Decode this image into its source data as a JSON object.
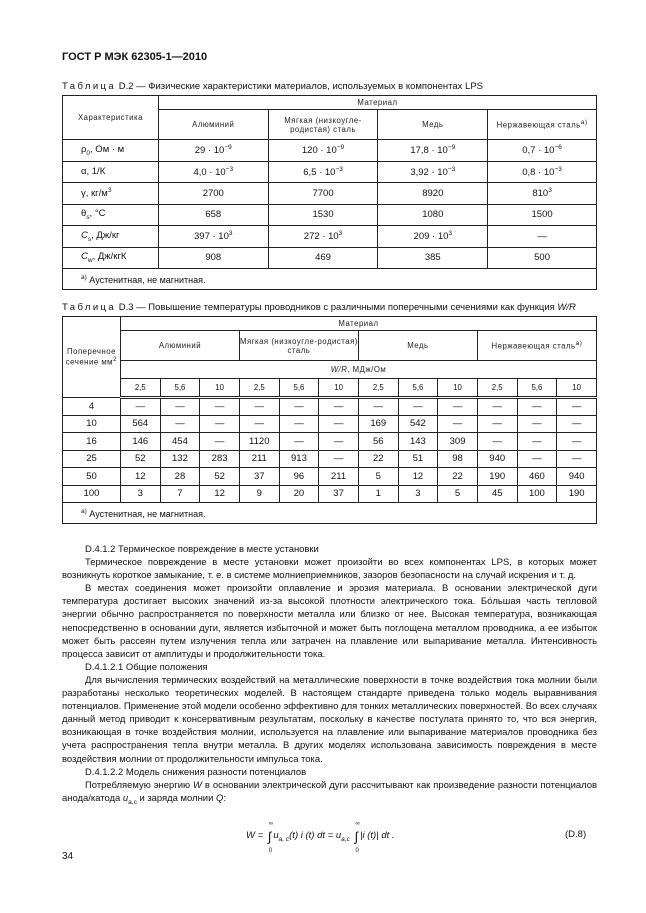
{
  "header": "ГОСТ Р МЭК 62305-1—2010",
  "table_d2": {
    "caption_prefix": "Таблица",
    "caption": "D.2 — Физические характеристики материалов, используемых в компонентах LPS",
    "col_char": "Характеристика",
    "col_material": "Материал",
    "materials": [
      "Алюминий",
      "Мягкая (низкоугле-родистая) сталь",
      "Медь",
      "Нержавеющая сталь"
    ],
    "footnote_mark": "a)",
    "rows": [
      {
        "label": "ρ",
        "sub": "0",
        "rest": ", Ом · м",
        "values": [
          "29 · 10",
          "120 · 10",
          "17,8 · 10",
          "0,7 · 10"
        ],
        "exp": [
          "−9",
          "−9",
          "−9",
          "−6"
        ]
      },
      {
        "label": "α, 1/К",
        "sub": "",
        "rest": "",
        "values": [
          "4,0 · 10",
          "6,5 · 10",
          "3,92 · 10",
          "0,8 · 10"
        ],
        "exp": [
          "−3",
          "−3",
          "−3",
          "−3"
        ]
      },
      {
        "label": "γ, кг/м",
        "sup": "3",
        "values": [
          "2700",
          "7700",
          "8920",
          "810"
        ],
        "exp": [
          "",
          "",
          "",
          "3"
        ]
      },
      {
        "label": "θ",
        "sub": "s",
        "rest": ", °С",
        "values": [
          "658",
          "1530",
          "1080",
          "1500"
        ],
        "exp": [
          "",
          "",
          "",
          ""
        ]
      },
      {
        "label": "C",
        "sub": "s",
        "rest": ", Дж/кг",
        "values": [
          "397 · 10",
          "272 · 10",
          "209 · 10",
          "—"
        ],
        "exp": [
          "3",
          "3",
          "3",
          ""
        ]
      },
      {
        "label": "C",
        "sub": "w",
        "rest": ", Дж/кгК",
        "values": [
          "908",
          "469",
          "385",
          "500"
        ],
        "exp": [
          "",
          "",
          "",
          ""
        ]
      }
    ],
    "footnote": "Аустенитная, не магнитная."
  },
  "table_d3": {
    "caption_prefix": "Таблица",
    "caption": "D.3 — Повышение температуры проводников с различными поперечными сечениями как функция ",
    "caption_italic": "W/R",
    "col_section": "Поперечное сечение мм",
    "col_section_sup": "2",
    "col_material": "Материал",
    "materials": [
      "Алюминий",
      "Мягкая (низкоугле-родистая) сталь",
      "Медь",
      "Нержавеющая сталь"
    ],
    "wr_italic": "W/R",
    "wr_unit": ", МДж/Ом",
    "wr_values": [
      "2,5",
      "5,6",
      "10",
      "2,5",
      "5,6",
      "10",
      "2,5",
      "5,6",
      "10",
      "2,5",
      "5,6",
      "10"
    ],
    "rows": [
      {
        "section": "4",
        "values": [
          "—",
          "—",
          "—",
          "—",
          "—",
          "—",
          "—",
          "—",
          "—",
          "—",
          "—",
          "—"
        ]
      },
      {
        "section": "10",
        "values": [
          "564",
          "—",
          "—",
          "—",
          "—",
          "—",
          "169",
          "542",
          "—",
          "—",
          "—",
          "—"
        ]
      },
      {
        "section": "16",
        "values": [
          "146",
          "454",
          "—",
          "1120",
          "—",
          "—",
          "56",
          "143",
          "309",
          "—",
          "—",
          "—"
        ]
      },
      {
        "section": "25",
        "values": [
          "52",
          "132",
          "283",
          "211",
          "913",
          "—",
          "22",
          "51",
          "98",
          "940",
          "—",
          "—"
        ]
      },
      {
        "section": "50",
        "values": [
          "12",
          "28",
          "52",
          "37",
          "96",
          "211",
          "5",
          "12",
          "22",
          "190",
          "460",
          "940"
        ]
      },
      {
        "section": "100",
        "values": [
          "3",
          "7",
          "12",
          "9",
          "20",
          "37",
          "1",
          "3",
          "5",
          "45",
          "100",
          "190"
        ]
      }
    ],
    "footnote_mark": "a)",
    "footnote": "Аустенитная, не магнитная."
  },
  "body": [
    "D.4.1.2 Термическое повреждение в месте установки",
    "Термическое повреждение в месте установки может произойти во всех компонентах LPS, в которых может возникнуть короткое замыкание, т. е. в системе молниеприемников, зазоров безопасности на случай искрения и т. д.",
    "В местах соединения может произойти оплавление и эрозия материала. В основании электрической дуги температура достигает высоких значений из-за высокой плотности электрического тока. Бóльшая часть тепловой энергии обычно распространяется по поверхности металла или близко от нее. Высокая температура, возникающая непосредственно в основании дуги, является избыточной и может быть поглощена металлом проводника, а ее избыток может быть рассеян путем излучения тепла или затрачен на плавление или выпаривание металла. Интенсивность процесса зависит от амплитуды и продолжительности тока.",
    "D.4.1.2.1 Общие положения",
    "Для вычисления термических воздействий на металлические поверхности в точке воздействия тока молнии были разработаны несколько теоретических моделей. В настоящем стандарте приведена только модель выравнивания потенциалов. Применение этой модели особенно эффективно для тонких металлических поверхностей. Во всех случаях данный метод приводит к консервативным результатам, поскольку в качестве постулата принято то, что вся энергия, возникающая в точке воздействия молнии, используется на плавление или выпаривание материалов проводника без учета распространения тепла внутри металла. В других моделях использована зависимость повреждения в месте воздействия молнии от продолжительности импульса тока.",
    "D.4.1.2.2 Модель снижения разности потенциалов"
  ],
  "last_para": {
    "a": "Потребляемую энергию ",
    "W": "W",
    "b": " в основании электрической дуги рассчитывают как произведение разности потенциалов анода/катода ",
    "u": "u",
    "usub": "a,c",
    "c": " и заряда молнии ",
    "Q": "Q",
    "d": ":"
  },
  "formula": {
    "lhs": "W =",
    "t1": "u",
    "t1sub": "a, c",
    "t1rest": "(t) i (t) dt = ",
    "t2": "u",
    "t2sub": "a,c",
    "t2rest": "|i (t)| dt .",
    "upper": "∞",
    "lower": "0",
    "number": "(D.8)"
  },
  "page_number": "34"
}
